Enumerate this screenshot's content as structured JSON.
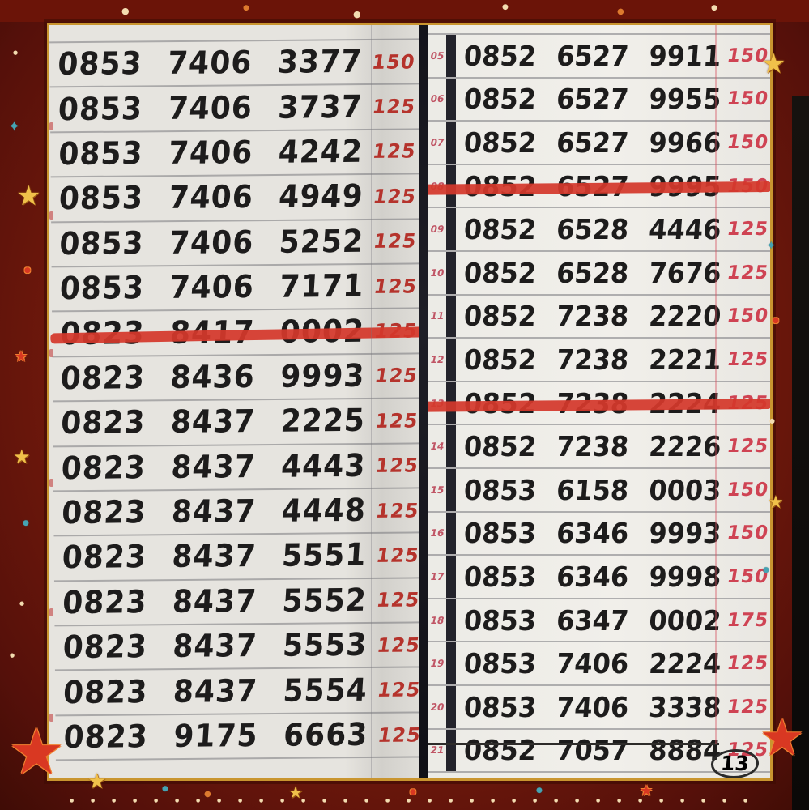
{
  "photo": {
    "description": "handwritten phone number price list, two notebook pages"
  },
  "colors": {
    "ink": "#1d1c1c",
    "price_left": "#b5332c",
    "price_right": "#cf4353",
    "strike_red": "#d4382b",
    "margin_index_red": "#c05565",
    "frame_maroon": "#7b1f12",
    "gold": "#f0c14a",
    "teal": "#46a3b3",
    "cream": "#f3dcb0"
  },
  "left_page": {
    "rows": [
      {
        "number": "0853 7406 3377",
        "price": "150",
        "struck": false
      },
      {
        "number": "0853 7406 3737",
        "price": "125",
        "struck": false
      },
      {
        "number": "0853 7406 4242",
        "price": "125",
        "struck": false
      },
      {
        "number": "0853 7406 4949",
        "price": "125",
        "struck": false
      },
      {
        "number": "0853 7406 5252",
        "price": "125",
        "struck": false
      },
      {
        "number": "0853 7406 7171",
        "price": "125",
        "struck": false
      },
      {
        "number": "0823 8417 0002",
        "price": "125",
        "struck": true
      },
      {
        "number": "0823 8436 9993",
        "price": "125",
        "struck": false
      },
      {
        "number": "0823 8437 2225",
        "price": "125",
        "struck": false
      },
      {
        "number": "0823 8437 4443",
        "price": "125",
        "struck": false
      },
      {
        "number": "0823 8437 4448",
        "price": "125",
        "struck": false
      },
      {
        "number": "0823 8437 5551",
        "price": "125",
        "struck": false
      },
      {
        "number": "0823 8437 5552",
        "price": "125",
        "struck": false
      },
      {
        "number": "0823 8437 5553",
        "price": "125",
        "struck": false
      },
      {
        "number": "0823 8437 5554",
        "price": "125",
        "struck": false
      },
      {
        "number": "0823 9175 6663",
        "price": "125",
        "struck": false
      }
    ]
  },
  "right_page": {
    "page_number": "13",
    "rows": [
      {
        "index": "05",
        "number": "0852 6527 9911",
        "price": "150",
        "struck": false
      },
      {
        "index": "06",
        "number": "0852 6527 9955",
        "price": "150",
        "struck": false
      },
      {
        "index": "07",
        "number": "0852 6527 9966",
        "price": "150",
        "struck": false
      },
      {
        "index": "08",
        "number": "0852 6527 9995",
        "price": "150",
        "struck": true
      },
      {
        "index": "09",
        "number": "0852 6528 4446",
        "price": "125",
        "struck": false
      },
      {
        "index": "10",
        "number": "0852 6528 7676",
        "price": "125",
        "struck": false
      },
      {
        "index": "11",
        "number": "0852 7238 2220",
        "price": "150",
        "struck": false
      },
      {
        "index": "12",
        "number": "0852 7238 2221",
        "price": "125",
        "struck": false
      },
      {
        "index": "13",
        "number": "0852 7238 2224",
        "price": "125",
        "struck": true
      },
      {
        "index": "14",
        "number": "0852 7238 2226",
        "price": "125",
        "struck": false
      },
      {
        "index": "15",
        "number": "0853 6158 0003",
        "price": "150",
        "struck": false
      },
      {
        "index": "16",
        "number": "0853 6346 9993",
        "price": "150",
        "struck": false
      },
      {
        "index": "17",
        "number": "0853 6346 9998",
        "price": "150",
        "struck": false
      },
      {
        "index": "18",
        "number": "0853 6347 0002",
        "price": "175",
        "struck": false
      },
      {
        "index": "19",
        "number": "0853 7406 2224",
        "price": "125",
        "struck": false
      },
      {
        "index": "20",
        "number": "0853 7406 3338",
        "price": "125",
        "struck": false
      },
      {
        "index": "21",
        "number": "0852 7057 8884",
        "price": "125",
        "struck": false
      }
    ]
  },
  "decor": {
    "glyphs": {
      "star": "★",
      "sparkle": "✦",
      "dot": "●"
    }
  }
}
